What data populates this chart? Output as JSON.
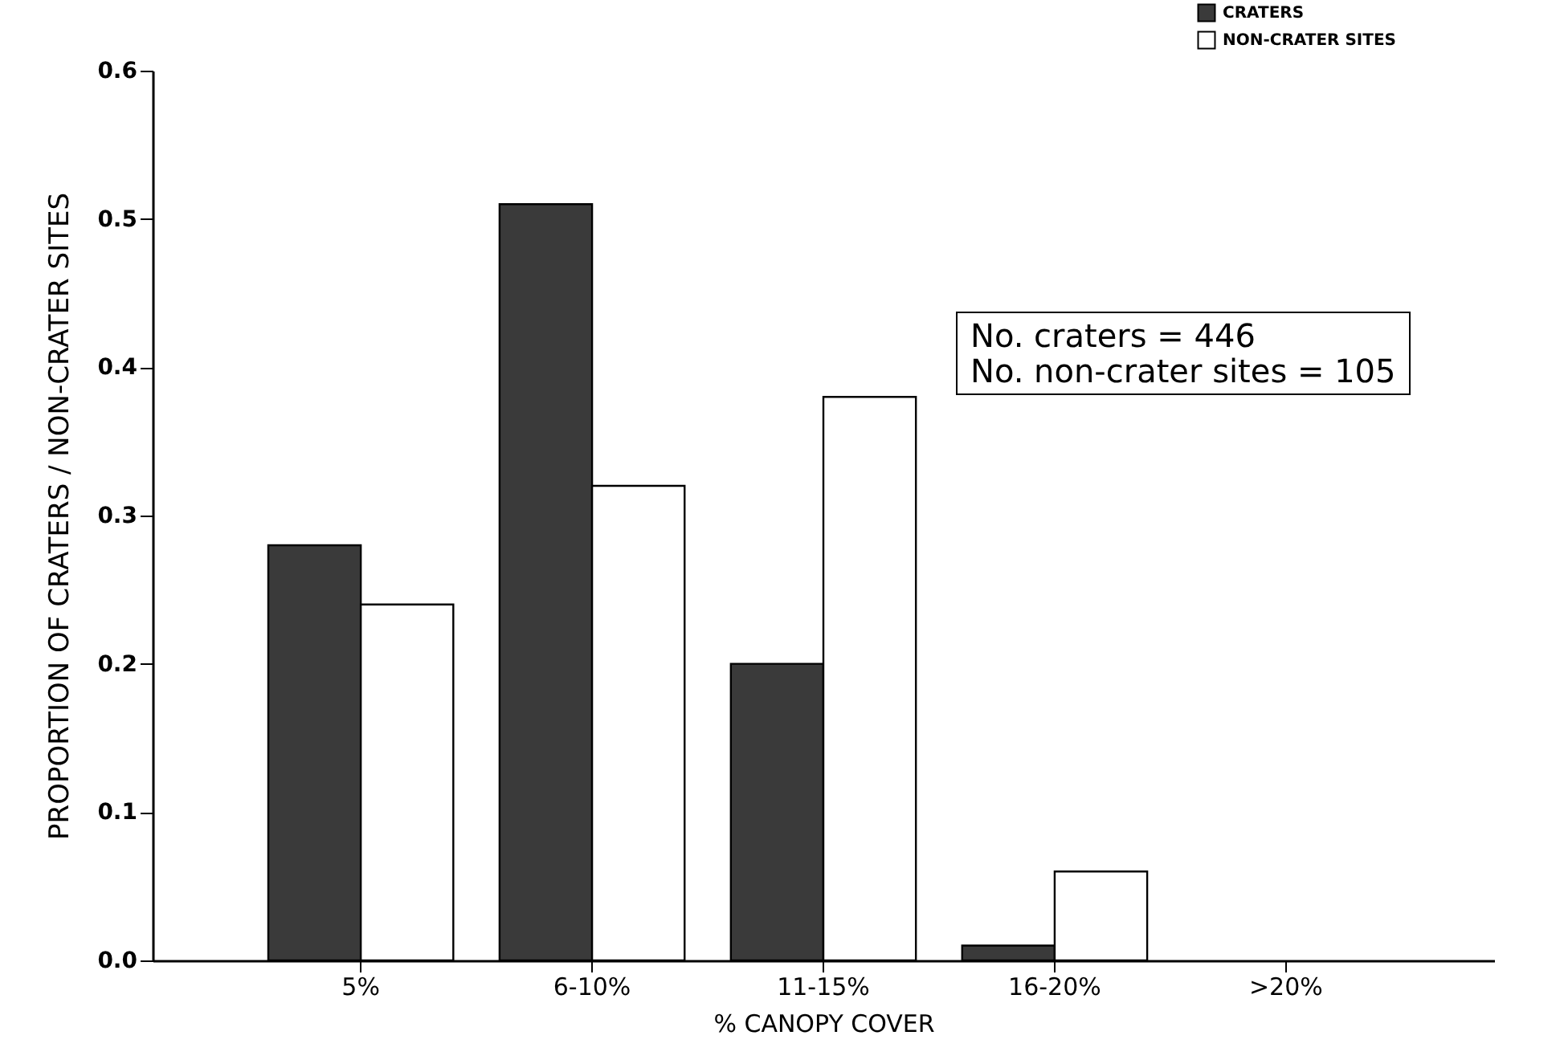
{
  "chart_data": {
    "type": "bar",
    "xlabel": "% CANOPY COVER",
    "ylabel": "PROPORTION OF CRATERS / NON-CRATER SITES",
    "categories": [
      "5%",
      "6-10%",
      "11-15%",
      "16-20%",
      ">20%"
    ],
    "series": [
      {
        "name": "CRATERS",
        "color": "#3a3a3a",
        "values": [
          0.28,
          0.51,
          0.2,
          0.01,
          null
        ]
      },
      {
        "name": "NON-CRATER SITES",
        "color": "#ffffff",
        "values": [
          0.24,
          0.32,
          0.38,
          0.06,
          null
        ]
      }
    ],
    "ylim": [
      0,
      0.6
    ],
    "yticks": [
      {
        "value": 0,
        "label": "0.0"
      },
      {
        "value": 0.1,
        "label": "0.1"
      },
      {
        "value": 0.2,
        "label": "0.2"
      },
      {
        "value": 0.3,
        "label": "0.3"
      },
      {
        "value": 0.4,
        "label": "0.4"
      },
      {
        "value": 0.5,
        "label": "0.5"
      },
      {
        "value": 0.6,
        "label": "0.6"
      }
    ],
    "annotations": [
      "No. craters = 446",
      "No. non-crater sites = 105"
    ],
    "legend": "top right",
    "grid": false
  }
}
